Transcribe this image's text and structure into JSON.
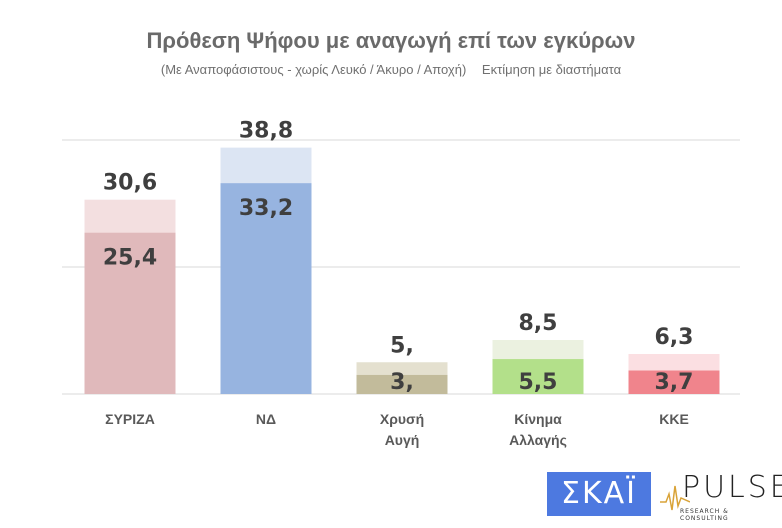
{
  "chart_data": {
    "type": "bar",
    "title": "Πρόθεση Ψήφου με αναγωγή επί των εγκύρων",
    "subtitle": [
      "(Με Αναποφάσιστους - χωρίς Λευκό / Άκυρο / Αποχή)",
      "Εκτίμηση με διαστήματα"
    ],
    "categories": [
      [
        "ΣΥΡΙΖΑ"
      ],
      [
        "ΝΔ"
      ],
      [
        "Χρυσή",
        "Αυγή"
      ],
      [
        "Κίνημα",
        "Αλλαγής"
      ],
      [
        "ΚΚΕ"
      ]
    ],
    "series": [
      {
        "values": [
          25.4,
          33.2,
          3,
          5.5,
          3.7
        ],
        "labels": [
          "25,4",
          "33,2",
          "3,",
          "5,5",
          "3,7"
        ],
        "colors": [
          "#e0b9bb",
          "#97b4e0",
          "#c2bb9b",
          "#b3e08a",
          "#f0848c"
        ]
      },
      {
        "values": [
          30.6,
          38.8,
          5,
          8.5,
          6.3
        ],
        "labels": [
          "30,6",
          "38,8",
          "5,",
          "8,5",
          "6,3"
        ],
        "colors": [
          "#f3dfe0",
          "#dce5f3",
          "#e4e0cf",
          "#ebf1e0",
          "#fbdfe2"
        ]
      }
    ],
    "ylim": [
      0,
      40
    ],
    "gridlines": [
      0,
      20,
      40
    ],
    "grid": true,
    "legend": "none"
  },
  "logos": {
    "skai": "ΣΚΑΪ",
    "pulse": "PULSE",
    "pulse_sub": "RESEARCH & CONSULTING"
  }
}
